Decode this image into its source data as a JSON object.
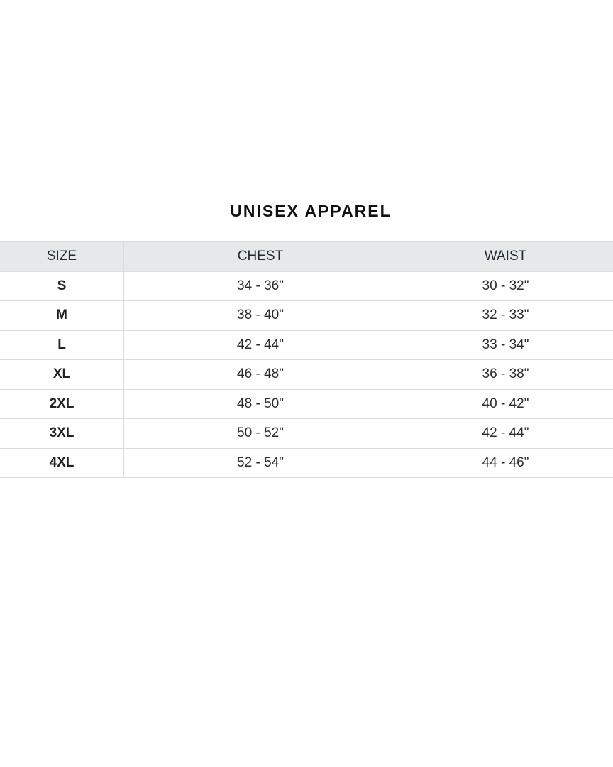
{
  "title": "UNISEX APPAREL",
  "table": {
    "headers": [
      "SIZE",
      "CHEST",
      "WAIST"
    ],
    "rows": [
      [
        "S",
        "34 - 36\"",
        "30 - 32\""
      ],
      [
        "M",
        "38 - 40\"",
        "32 - 33\""
      ],
      [
        "L",
        "42 - 44\"",
        "33 - 34\""
      ],
      [
        "XL",
        "46 - 48\"",
        "36 - 38\""
      ],
      [
        "2XL",
        "48 - 50\"",
        "40 - 42\""
      ],
      [
        "3XL",
        "50 - 52\"",
        "42 - 44\""
      ],
      [
        "4XL",
        "52 - 54\"",
        "44 - 46\""
      ]
    ]
  },
  "colors": {
    "header_bg": "#e6e9e9",
    "border": "#dcdcdc"
  }
}
